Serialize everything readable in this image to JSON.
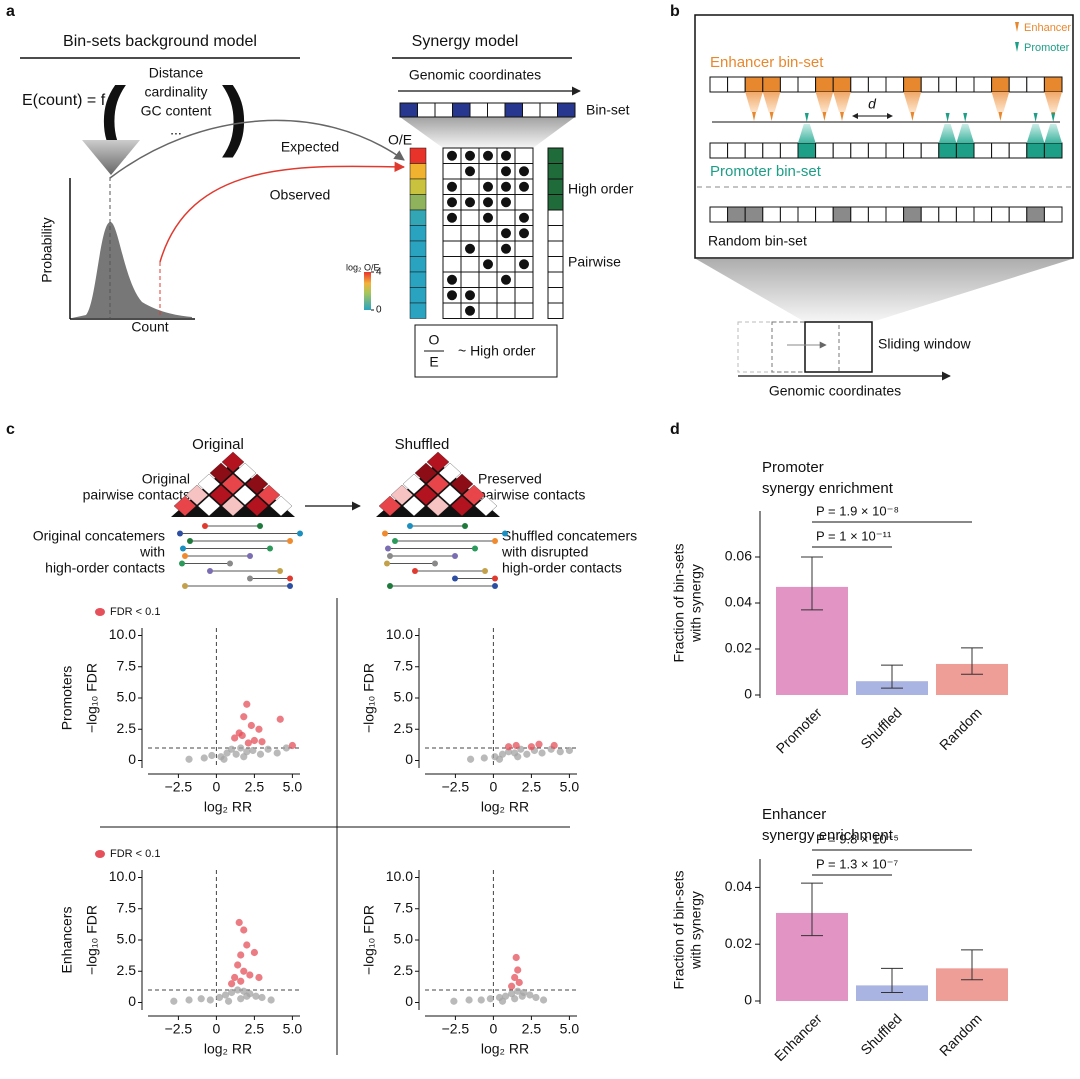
{
  "panel_labels": [
    "a",
    "b",
    "c",
    "d"
  ],
  "panel_a": {
    "background_title": "Bin-sets background model",
    "formula": "E(count) = f",
    "features": [
      "Distance",
      "cardinality",
      "GC content",
      "..."
    ],
    "y_label": "Probability",
    "x_label": "Count",
    "expected": "Expected",
    "observed": "Observed",
    "synergy_title": "Synergy model",
    "coordinates": "Genomic coordinates",
    "bin_set": "Bin-set",
    "oe": "O/E",
    "high_order": "High order",
    "pairwise": "Pairwise",
    "scale_label": "log₂ O/E",
    "scale_ticks": [
      0,
      4
    ],
    "ratio_numerator": "O",
    "ratio_denominator": "E",
    "ratio_text": "~ High order"
  },
  "panel_b": {
    "legend": [
      "Enhancer",
      "Promoter"
    ],
    "enhancer_set": "Enhancer bin-set",
    "distance": "d",
    "promoter_set": "Promoter bin-set",
    "random_set": "Random bin-set",
    "sliding_window": "Sliding window",
    "coordinates": "Genomic coordinates"
  },
  "panel_c": {
    "conditions": [
      "Original",
      "Shuffled"
    ],
    "original_pairwise": [
      "Original",
      "pairwise contacts"
    ],
    "preserved_pairwise": [
      "Preserved",
      "pairwise contacts"
    ],
    "original_concatemers": [
      "Original concatemers",
      "with",
      "high-order contacts"
    ],
    "shuffled_concatemers": [
      "Shuffled concatemers",
      "with disrupted",
      "high-order contacts"
    ],
    "rows": [
      "Promoters",
      "Enhancers"
    ],
    "plots": [
      {
        "type": "scatter",
        "ylabel": "−log₁₀ FDR",
        "xlabel": "log₂ RR",
        "xlim": [
          -4.5,
          5.5
        ],
        "ylim": [
          -0.6,
          10.6
        ],
        "hline": 1,
        "vline": 0,
        "xticks": [
          {
            "value": -2.5,
            "label": "−2.5"
          },
          0,
          2.5,
          {
            "value": 5,
            "label": "5.0"
          }
        ],
        "yticks": [
          0,
          2.5,
          {
            "value": 5,
            "label": "5.0"
          },
          7.5,
          {
            "value": 10,
            "label": "10.0"
          }
        ],
        "series": [
          {
            "color": "#a3a3a3",
            "x": [
              -1.8,
              -0.8,
              -0.3,
              0.3,
              0.7,
              1.0,
              1.3,
              1.6,
              2.0,
              2.4,
              2.9,
              3.4,
              4.0,
              4.6,
              0.5,
              1.8
            ],
            "y": [
              0.1,
              0.2,
              0.4,
              0.3,
              0.6,
              0.9,
              0.5,
              1.0,
              0.7,
              0.8,
              0.5,
              0.9,
              0.6,
              1.0,
              0.1,
              0.3
            ]
          },
          {
            "name": "FDR < 0.1",
            "color": "#e5505a",
            "x": [
              1.5,
              1.8,
              2.0,
              2.3,
              2.8,
              1.2,
              3.0,
              4.2,
              5.0,
              2.5,
              1.7,
              2.1
            ],
            "y": [
              2.2,
              3.5,
              4.5,
              2.8,
              2.5,
              1.8,
              1.5,
              3.3,
              1.2,
              1.6,
              2.0,
              1.4
            ]
          }
        ]
      },
      {
        "type": "scatter",
        "ylabel": "−log₁₀ FDR",
        "xlabel": "log₂ RR",
        "xlim": [
          -4.5,
          5.5
        ],
        "ylim": [
          -0.6,
          10.6
        ],
        "hline": 1,
        "vline": 0,
        "xticks": [
          {
            "value": -2.5,
            "label": "−2.5"
          },
          0,
          2.5,
          {
            "value": 5,
            "label": "5.0"
          }
        ],
        "yticks": [
          0,
          2.5,
          {
            "value": 5,
            "label": "5.0"
          },
          7.5,
          {
            "value": 10,
            "label": "10.0"
          }
        ],
        "series": [
          {
            "color": "#a3a3a3",
            "x": [
              -1.5,
              -0.6,
              0.1,
              0.6,
              1.0,
              1.4,
              1.8,
              2.2,
              2.7,
              3.2,
              3.8,
              4.4,
              5.0,
              0.4,
              1.6
            ],
            "y": [
              0.1,
              0.2,
              0.3,
              0.5,
              0.7,
              0.6,
              0.9,
              0.5,
              0.8,
              0.6,
              0.9,
              0.7,
              0.8,
              0.1,
              0.3
            ]
          },
          {
            "color": "#e5505a",
            "x": [
              1.5,
              2.5,
              3.0,
              4.0,
              1.0
            ],
            "y": [
              1.2,
              1.1,
              1.3,
              1.2,
              1.1
            ]
          }
        ]
      },
      {
        "type": "scatter",
        "ylabel": "−log₁₀ FDR",
        "xlabel": "log₂ RR",
        "xlim": [
          -4.5,
          5.5
        ],
        "ylim": [
          -0.6,
          10.6
        ],
        "hline": 1,
        "vline": 0,
        "xticks": [
          {
            "value": -2.5,
            "label": "−2.5"
          },
          0,
          2.5,
          {
            "value": 5,
            "label": "5.0"
          }
        ],
        "yticks": [
          0,
          2.5,
          {
            "value": 5,
            "label": "5.0"
          },
          7.5,
          {
            "value": 10,
            "label": "10.0"
          }
        ],
        "series": [
          {
            "color": "#a3a3a3",
            "x": [
              -2.8,
              -1.8,
              -1.0,
              -0.4,
              0.2,
              0.6,
              1.0,
              1.4,
              1.8,
              2.2,
              2.6,
              3.0,
              3.6,
              0.8,
              1.6,
              2.0
            ],
            "y": [
              0.1,
              0.2,
              0.3,
              0.2,
              0.4,
              0.6,
              0.8,
              1.0,
              0.9,
              0.7,
              0.5,
              0.4,
              0.2,
              0.1,
              0.3,
              0.5
            ]
          },
          {
            "name": "FDR < 0.1",
            "color": "#e5505a",
            "x": [
              1.5,
              1.8,
              2.5,
              2.0,
              1.6,
              1.4,
              1.8,
              1.2,
              2.2,
              1.6,
              2.8,
              1.0
            ],
            "y": [
              6.4,
              5.8,
              4.0,
              4.6,
              3.8,
              3.0,
              2.5,
              2.0,
              2.2,
              1.7,
              2.0,
              1.5
            ]
          }
        ]
      },
      {
        "type": "scatter",
        "ylabel": "−log₁₀ FDR",
        "xlabel": "log₂ RR",
        "xlim": [
          -4.5,
          5.5
        ],
        "ylim": [
          -0.6,
          10.6
        ],
        "hline": 1,
        "vline": 0,
        "xticks": [
          {
            "value": -2.5,
            "label": "−2.5"
          },
          0,
          2.5,
          {
            "value": 5,
            "label": "5.0"
          }
        ],
        "yticks": [
          0,
          2.5,
          {
            "value": 5,
            "label": "5.0"
          },
          7.5,
          {
            "value": 10,
            "label": "10.0"
          }
        ],
        "series": [
          {
            "color": "#a3a3a3",
            "x": [
              -2.6,
              -1.6,
              -0.8,
              -0.2,
              0.4,
              0.8,
              1.2,
              1.6,
              2.0,
              2.4,
              2.8,
              3.3,
              0.6,
              1.4,
              1.9
            ],
            "y": [
              0.1,
              0.2,
              0.2,
              0.3,
              0.4,
              0.5,
              0.7,
              0.9,
              0.8,
              0.6,
              0.4,
              0.2,
              0.1,
              0.3,
              0.5
            ]
          },
          {
            "color": "#e5505a",
            "x": [
              1.5,
              1.6,
              1.4,
              1.7,
              1.2
            ],
            "y": [
              3.6,
              2.6,
              2.0,
              1.6,
              1.3
            ]
          }
        ]
      }
    ]
  },
  "panel_d": {
    "charts": [
      {
        "type": "bar",
        "title": [
          "Promoter",
          "synergy enrichment"
        ],
        "ylabel": [
          "Fraction of bin-sets",
          "with synergy"
        ],
        "categories": [
          "Promoter",
          "Shuffled",
          "Random"
        ],
        "values": [
          0.047,
          0.006,
          0.0135
        ],
        "error_low": [
          0.037,
          0.003,
          0.009
        ],
        "error_high": [
          0.06,
          0.013,
          0.0205
        ],
        "colors": [
          "#e294c4",
          "#aab4e2",
          "#ee9d97"
        ],
        "ylim": [
          0,
          0.08
        ],
        "yticks": [
          0,
          0.02,
          0.04,
          0.06
        ],
        "annotations": [
          "P = 1.9 × 10⁻⁸",
          "P = 1 × 10⁻¹¹"
        ]
      },
      {
        "type": "bar",
        "title": [
          "Enhancer",
          "synergy enrichment"
        ],
        "ylabel": [
          "Fraction of bin-sets",
          "with synergy"
        ],
        "categories": [
          "Enhancer",
          "Shuffled",
          "Random"
        ],
        "values": [
          0.031,
          0.0055,
          0.0115
        ],
        "error_low": [
          0.023,
          0.003,
          0.0075
        ],
        "error_high": [
          0.0415,
          0.0115,
          0.018
        ],
        "colors": [
          "#e294c4",
          "#aab4e2",
          "#ee9d97"
        ],
        "ylim": [
          0,
          0.05
        ],
        "yticks": [
          0,
          0.02,
          0.04
        ],
        "annotations": [
          "P = 9.8 × 10⁻⁵",
          "P = 1.3 × 10⁻⁷"
        ]
      }
    ]
  }
}
